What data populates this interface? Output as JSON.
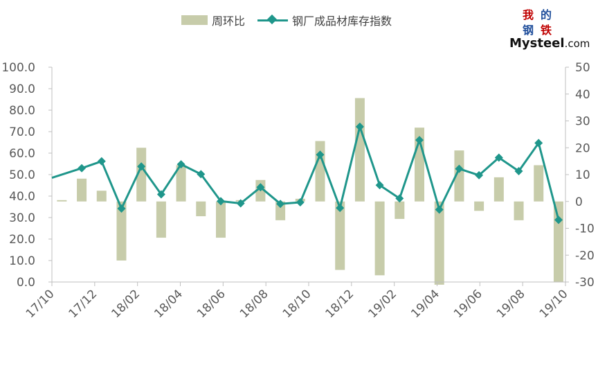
{
  "chart_data": {
    "type": "bar+line",
    "legend": {
      "bar_name": "周环比",
      "line_name": "钢厂成品材库存指数",
      "position": "top"
    },
    "x_tick_labels": [
      "17/10",
      "17/12",
      "18/02",
      "18/04",
      "18/06",
      "18/08",
      "18/10",
      "18/12",
      "19/02",
      "19/04",
      "19/06",
      "19/08",
      "19/10"
    ],
    "left_axis": {
      "min": 0,
      "max": 100,
      "ticks": [
        "0.0",
        "10.0",
        "20.0",
        "30.0",
        "40.0",
        "50.0",
        "60.0",
        "70.0",
        "80.0",
        "90.0",
        "100.0"
      ]
    },
    "right_axis": {
      "min": -30,
      "max": 50,
      "ticks": [
        "-30",
        "-20",
        "-10",
        "0",
        "10",
        "20",
        "30",
        "40",
        "50"
      ]
    },
    "grid": false,
    "series": [
      {
        "name": "周环比",
        "kind": "bar",
        "axis": "right",
        "color": "#c7ccaa",
        "values": [
          0.5,
          8.5,
          4,
          -22,
          20,
          -13.5,
          13.5,
          -5.5,
          -13.5,
          0.5,
          8,
          -7,
          1,
          22.5,
          -25.5,
          38.5,
          -27.5,
          -6.5,
          27.5,
          -31,
          19,
          -3.5,
          9,
          -7,
          13.5,
          -30
        ]
      },
      {
        "name": "钢厂成品材库存指数",
        "kind": "line",
        "axis": "left",
        "color": "#1f968b",
        "values": [
          48.5,
          53,
          56.2,
          34.2,
          53.8,
          40.8,
          54.8,
          50.2,
          37.6,
          36.6,
          44.1,
          36.4,
          37.1,
          59.3,
          34.5,
          72.3,
          45.1,
          38.9,
          66.1,
          33.7,
          52.7,
          49.7,
          57.9,
          51.6,
          64.7,
          28.9
        ]
      }
    ]
  },
  "logo": {
    "chars": [
      "我",
      "的",
      "钢",
      "铁"
    ],
    "wordmark_main": "Mysteel",
    "wordmark_suffix": ".com"
  }
}
